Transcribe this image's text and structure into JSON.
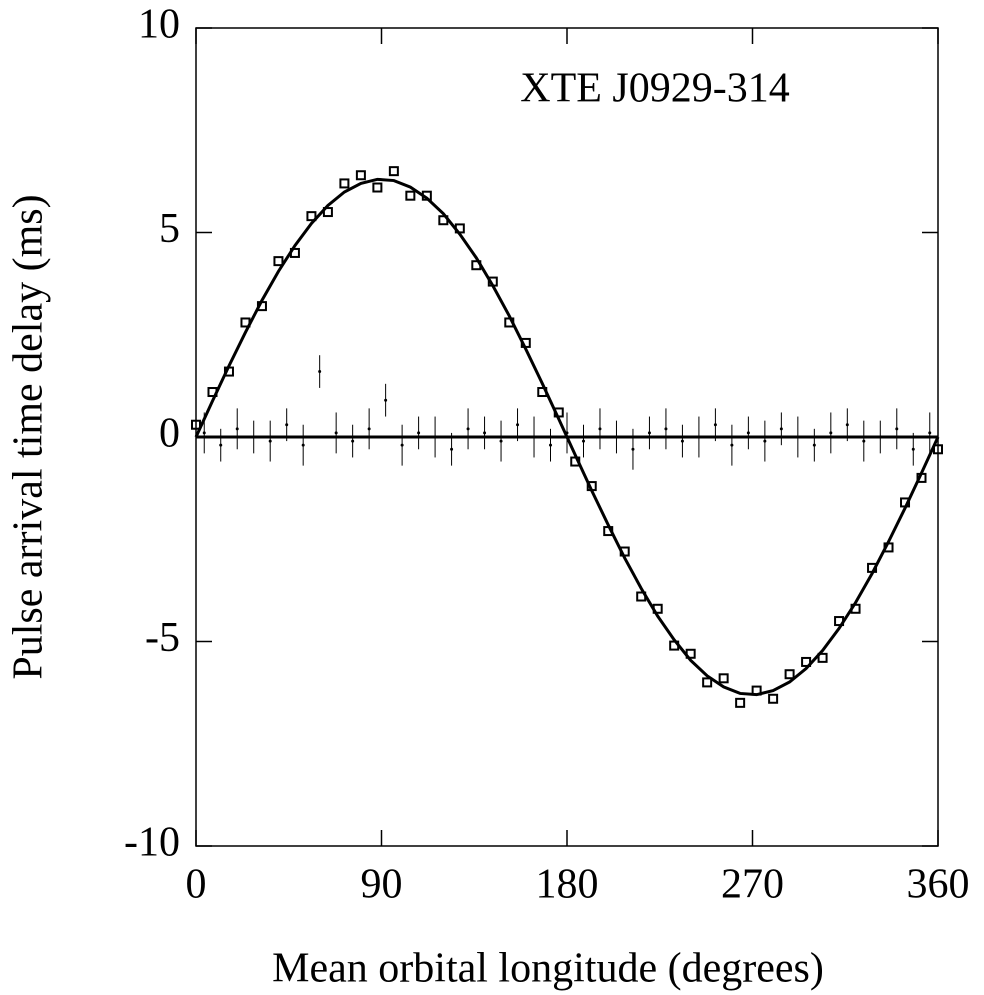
{
  "chart_data": {
    "type": "scatter",
    "annotation": "XTE J0929-314",
    "xlabel": "Mean orbital longitude (degrees)",
    "ylabel": "Pulse arrival time delay (ms)",
    "xlim": [
      0,
      360
    ],
    "xticks": [
      0,
      90,
      180,
      270,
      360
    ],
    "ylim": [
      -10,
      10
    ],
    "yticks": [
      -10,
      -5,
      0,
      5,
      10
    ],
    "series": [
      {
        "style": "square",
        "color": "#000000",
        "x": [
          0,
          8,
          16,
          24,
          32,
          40,
          48,
          56,
          64,
          72,
          80,
          88,
          96,
          104,
          112,
          120,
          128,
          136,
          144,
          152,
          160,
          168,
          176,
          184,
          192,
          200,
          208,
          216,
          224,
          232,
          240,
          248,
          256,
          264,
          272,
          280,
          288,
          296,
          304,
          312,
          320,
          328,
          336,
          344,
          352,
          360
        ],
        "values": [
          0.3,
          1.1,
          1.6,
          2.8,
          3.2,
          4.3,
          4.5,
          5.4,
          5.5,
          6.2,
          6.4,
          6.1,
          6.5,
          5.9,
          5.9,
          5.3,
          5.1,
          4.2,
          3.8,
          2.8,
          2.3,
          1.1,
          0.6,
          -0.6,
          -1.2,
          -2.3,
          -2.8,
          -3.9,
          -4.2,
          -5.1,
          -5.3,
          -6.0,
          -5.9,
          -6.5,
          -6.2,
          -6.4,
          -5.8,
          -5.5,
          -5.4,
          -4.5,
          -4.2,
          -3.2,
          -2.7,
          -1.6,
          -1.0,
          -0.3
        ]
      },
      {
        "style": "errorbar",
        "color": "#000000",
        "x": [
          4,
          12,
          20,
          28,
          36,
          44,
          52,
          60,
          68,
          76,
          84,
          92,
          100,
          108,
          116,
          124,
          132,
          140,
          148,
          156,
          164,
          172,
          180,
          188,
          196,
          204,
          212,
          220,
          228,
          236,
          244,
          252,
          260,
          268,
          276,
          284,
          292,
          300,
          308,
          316,
          324,
          332,
          340,
          348,
          356
        ],
        "values": [
          0.1,
          -0.2,
          0.2,
          0.0,
          -0.1,
          0.3,
          -0.2,
          1.6,
          0.1,
          -0.1,
          0.2,
          0.9,
          -0.2,
          0.1,
          0.0,
          -0.3,
          0.2,
          0.1,
          -0.1,
          0.3,
          0.0,
          -0.2,
          0.1,
          -0.1,
          0.2,
          0.0,
          -0.3,
          0.1,
          0.2,
          -0.1,
          0.0,
          0.3,
          -0.2,
          0.1,
          -0.1,
          0.2,
          0.0,
          -0.2,
          0.1,
          0.3,
          -0.1,
          0.0,
          0.2,
          -0.3,
          0.1
        ],
        "errors": [
          0.5,
          0.4,
          0.5,
          0.4,
          0.5,
          0.4,
          0.5,
          0.4,
          0.5,
          0.4,
          0.5,
          0.4,
          0.5,
          0.4,
          0.5,
          0.4,
          0.5,
          0.4,
          0.5,
          0.4,
          0.5,
          0.4,
          0.5,
          0.4,
          0.5,
          0.4,
          0.5,
          0.4,
          0.5,
          0.4,
          0.5,
          0.4,
          0.5,
          0.4,
          0.5,
          0.4,
          0.5,
          0.4,
          0.5,
          0.4,
          0.5,
          0.4,
          0.5,
          0.4,
          0.5
        ]
      },
      {
        "style": "line",
        "color": "#000000",
        "x": [
          0,
          8,
          16,
          24,
          32,
          40,
          48,
          56,
          64,
          72,
          80,
          88,
          96,
          104,
          112,
          120,
          128,
          136,
          144,
          152,
          160,
          168,
          176,
          184,
          192,
          200,
          208,
          216,
          224,
          232,
          240,
          248,
          256,
          264,
          272,
          280,
          288,
          296,
          304,
          312,
          320,
          328,
          336,
          344,
          352,
          360
        ],
        "values": [
          0,
          0.88,
          1.74,
          2.56,
          3.34,
          4.05,
          4.68,
          5.22,
          5.66,
          5.99,
          6.2,
          6.3,
          6.27,
          6.11,
          5.84,
          5.46,
          4.96,
          4.38,
          3.7,
          2.96,
          2.15,
          1.31,
          0.44,
          -0.44,
          -1.31,
          -2.15,
          -2.96,
          -3.7,
          -4.38,
          -4.96,
          -5.46,
          -5.84,
          -6.11,
          -6.27,
          -6.3,
          -6.2,
          -5.99,
          -5.66,
          -5.22,
          -4.68,
          -4.05,
          -3.34,
          -2.56,
          -1.74,
          -0.88,
          0
        ]
      },
      {
        "style": "line",
        "color": "#000000",
        "x": [
          0,
          360
        ],
        "values": [
          0,
          0
        ]
      }
    ]
  }
}
